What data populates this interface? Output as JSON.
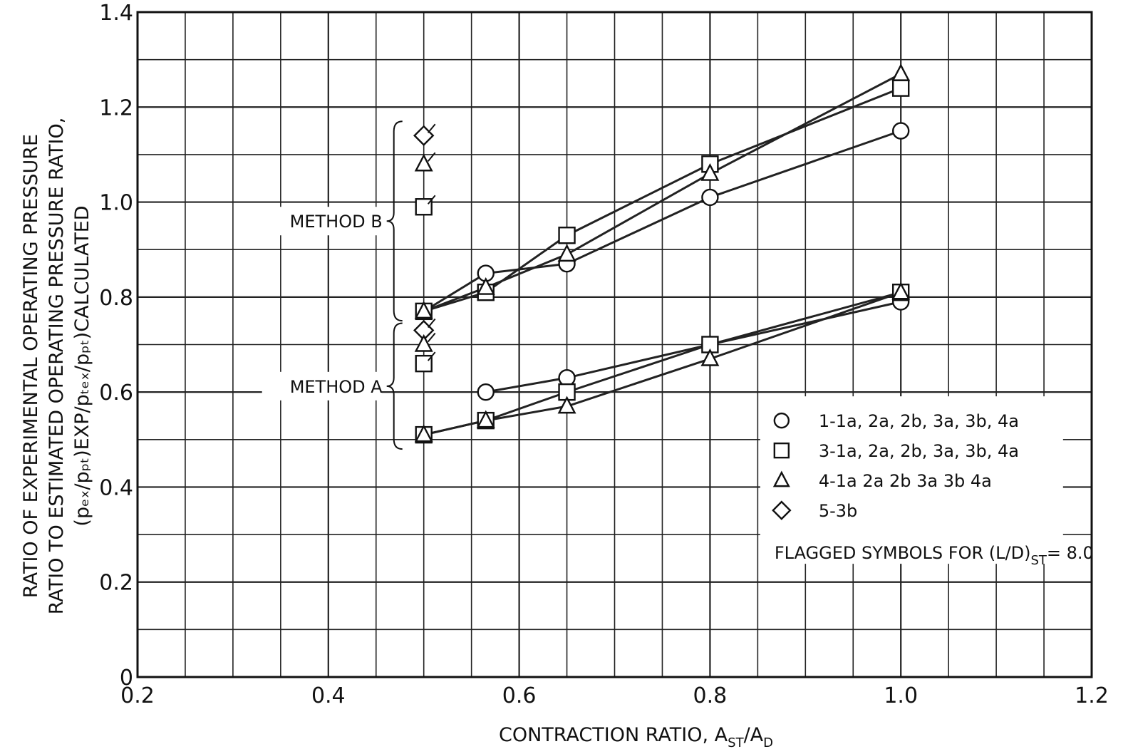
{
  "chart_data": {
    "type": "line",
    "xlabel": "CONTRACTION RATIO, A",
    "xlabel_sub1": "ST",
    "xlabel_mid": "/A",
    "xlabel_sub2": "D",
    "ylabel_lines": [
      "RATIO OF EXPERIMENTAL OPERATING PRESSURE",
      "RATIO TO ESTIMATED OPERATING PRESSURE RATIO,",
      "(pₑₓ/pₚₜ)EXP/pₜₑₓ/pₚₜ)CALCULATED"
    ],
    "xlim": [
      0.2,
      1.2
    ],
    "ylim": [
      0,
      1.4
    ],
    "x_ticks": [
      "0.2",
      "0.4",
      "0.6",
      "0.8",
      "1.0",
      "1.2"
    ],
    "y_ticks": [
      "0",
      "0.2",
      "0.4",
      "0.6",
      "0.8",
      "1.0",
      "1.2",
      "1.4"
    ],
    "grid": true,
    "legend_position": "lower-right",
    "annotations": [
      "METHOD B",
      "METHOD A"
    ],
    "legend": [
      {
        "symbol": "circle",
        "label": "1-1a, 2a, 2b, 3a, 3b, 4a"
      },
      {
        "symbol": "square",
        "label": "3-1a, 2a, 2b, 3a, 3b, 4a"
      },
      {
        "symbol": "triangle",
        "label": "4-1a 2a 2b 3a 3b 4a"
      },
      {
        "symbol": "diamond",
        "label": "5-3b"
      }
    ],
    "legend_note": "FLAGGED SYMBOLS FOR (L/D)",
    "legend_note_sub": "ST",
    "legend_note_tail": "= 8.0",
    "series": [
      {
        "name": "1-1a, 2a, 2b, 3a, 3b, 4a",
        "method": "B",
        "symbol": "circle",
        "x": [
          0.5,
          0.565,
          0.65,
          0.8,
          1.0
        ],
        "y": [
          0.77,
          0.85,
          0.87,
          1.01,
          1.15
        ]
      },
      {
        "name": "3-1a, 2a, 2b, 3a, 3b, 4a",
        "method": "B",
        "symbol": "square",
        "x": [
          0.5,
          0.565,
          0.65,
          0.8,
          1.0
        ],
        "y": [
          0.77,
          0.81,
          0.93,
          1.08,
          1.24
        ]
      },
      {
        "name": "4-1a 2a 2b 3a 3b 4a",
        "method": "B",
        "symbol": "triangle",
        "x": [
          0.5,
          0.565,
          0.65,
          0.8,
          1.0
        ],
        "y": [
          0.77,
          0.82,
          0.89,
          1.06,
          1.27
        ]
      },
      {
        "name": "1-1a, 2a, 2b, 3a, 3b, 4a",
        "method": "A",
        "symbol": "circle",
        "x": [
          0.565,
          0.65,
          0.8,
          1.0
        ],
        "y": [
          0.6,
          0.63,
          0.7,
          0.79
        ]
      },
      {
        "name": "3-1a, 2a, 2b, 3a, 3b, 4a",
        "method": "A",
        "symbol": "square",
        "x": [
          0.5,
          0.565,
          0.65,
          0.8,
          1.0
        ],
        "y": [
          0.51,
          0.54,
          0.6,
          0.7,
          0.81
        ]
      },
      {
        "name": "4-1a 2a 2b 3a 3b 4a",
        "method": "A",
        "symbol": "triangle",
        "x": [
          0.5,
          0.565,
          0.65,
          0.8,
          1.0
        ],
        "y": [
          0.51,
          0.54,
          0.57,
          0.67,
          0.81
        ]
      }
    ],
    "flagged_points": [
      {
        "method": "B",
        "symbol": "diamond",
        "x": 0.5,
        "y": 1.14
      },
      {
        "method": "B",
        "symbol": "triangle",
        "x": 0.5,
        "y": 1.08
      },
      {
        "method": "B",
        "symbol": "square",
        "x": 0.5,
        "y": 0.99
      },
      {
        "method": "A",
        "symbol": "diamond",
        "x": 0.5,
        "y": 0.73
      },
      {
        "method": "A",
        "symbol": "triangle",
        "x": 0.5,
        "y": 0.7
      },
      {
        "method": "A",
        "symbol": "square",
        "x": 0.5,
        "y": 0.66
      }
    ]
  }
}
